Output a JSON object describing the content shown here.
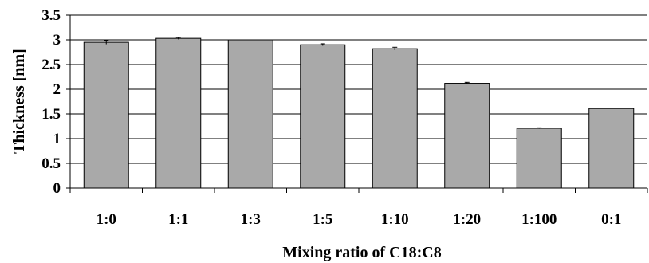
{
  "chart_data": {
    "type": "bar",
    "categories": [
      "1:0",
      "1:1",
      "1:3",
      "1:5",
      "1:10",
      "1:20",
      "1:100",
      "0:1"
    ],
    "values": [
      2.95,
      3.03,
      3.0,
      2.9,
      2.82,
      2.12,
      1.21,
      1.61
    ],
    "errors": [
      0.04,
      0.02,
      0.0,
      0.02,
      0.03,
      0.02,
      0.01,
      0.0
    ],
    "xlabel": "Mixing ratio of C18:C8",
    "ylabel": "Thickness [nm]",
    "ylim": [
      0,
      3.5
    ],
    "ytick_step": 0.5,
    "yticks": [
      "0",
      "0.5",
      "1",
      "1.5",
      "2",
      "2.5",
      "3",
      "3.5"
    ],
    "grid": true,
    "legend": "none",
    "bar_color": "#a9a9a9",
    "bar_edge_color": "#000000"
  }
}
